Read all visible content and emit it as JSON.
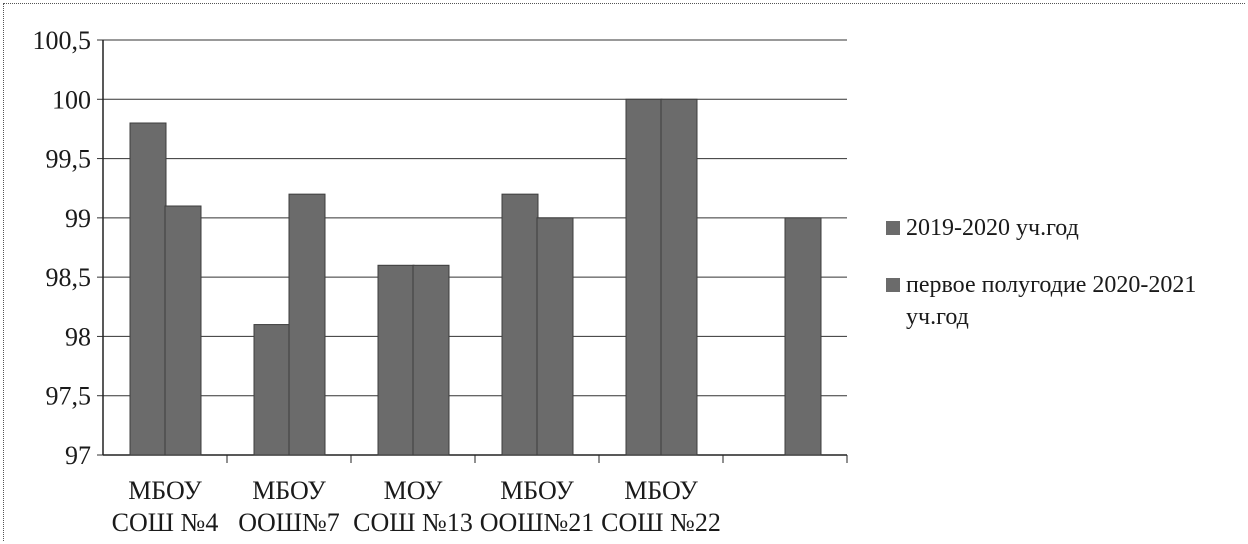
{
  "chart_data": {
    "type": "bar",
    "categories": [
      "МБОУ|СОШ №4",
      "МБОУ|ООШ№7",
      "МОУ|СОШ №13",
      "МБОУ|ООШ№21",
      "МБОУ|СОШ №22",
      ""
    ],
    "series": [
      {
        "name": "2019-2020 уч.год",
        "values": [
          99.8,
          98.1,
          98.6,
          99.2,
          100,
          null
        ]
      },
      {
        "name": "первое полугодие 2020-2021 уч.год",
        "values": [
          99.1,
          99.2,
          98.6,
          99.0,
          100,
          99.0
        ]
      }
    ],
    "ylim": [
      97,
      100.5
    ],
    "yticks": [
      "97",
      "97,5",
      "98",
      "98,5",
      "99",
      "99,5",
      "100",
      "100,5"
    ],
    "grid": true,
    "legend_position": "right",
    "colors": {
      "bar": "#6b6b6b",
      "grid": "#333333"
    }
  }
}
